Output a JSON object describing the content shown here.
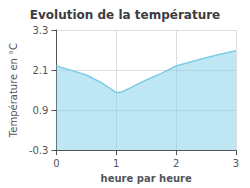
{
  "chart_data": {
    "type": "area",
    "title": "Evolution de la température",
    "xlabel": "heure par heure",
    "ylabel": "Température en °C",
    "x": [
      0,
      0.2,
      0.5,
      0.75,
      1.0,
      1.1,
      1.25,
      1.5,
      1.75,
      2.0,
      2.25,
      2.5,
      2.75,
      3.0
    ],
    "values": [
      2.22,
      2.12,
      1.95,
      1.72,
      1.42,
      1.45,
      1.58,
      1.8,
      2.0,
      2.22,
      2.35,
      2.47,
      2.58,
      2.68
    ],
    "color": "#7ecde8",
    "xlim": [
      0,
      3
    ],
    "xticks": [
      0,
      1,
      2,
      3
    ],
    "ylim": [
      -0.3,
      3.3
    ],
    "yticks": [
      -0.3,
      0.9,
      2.1,
      3.3
    ],
    "grid": true
  }
}
